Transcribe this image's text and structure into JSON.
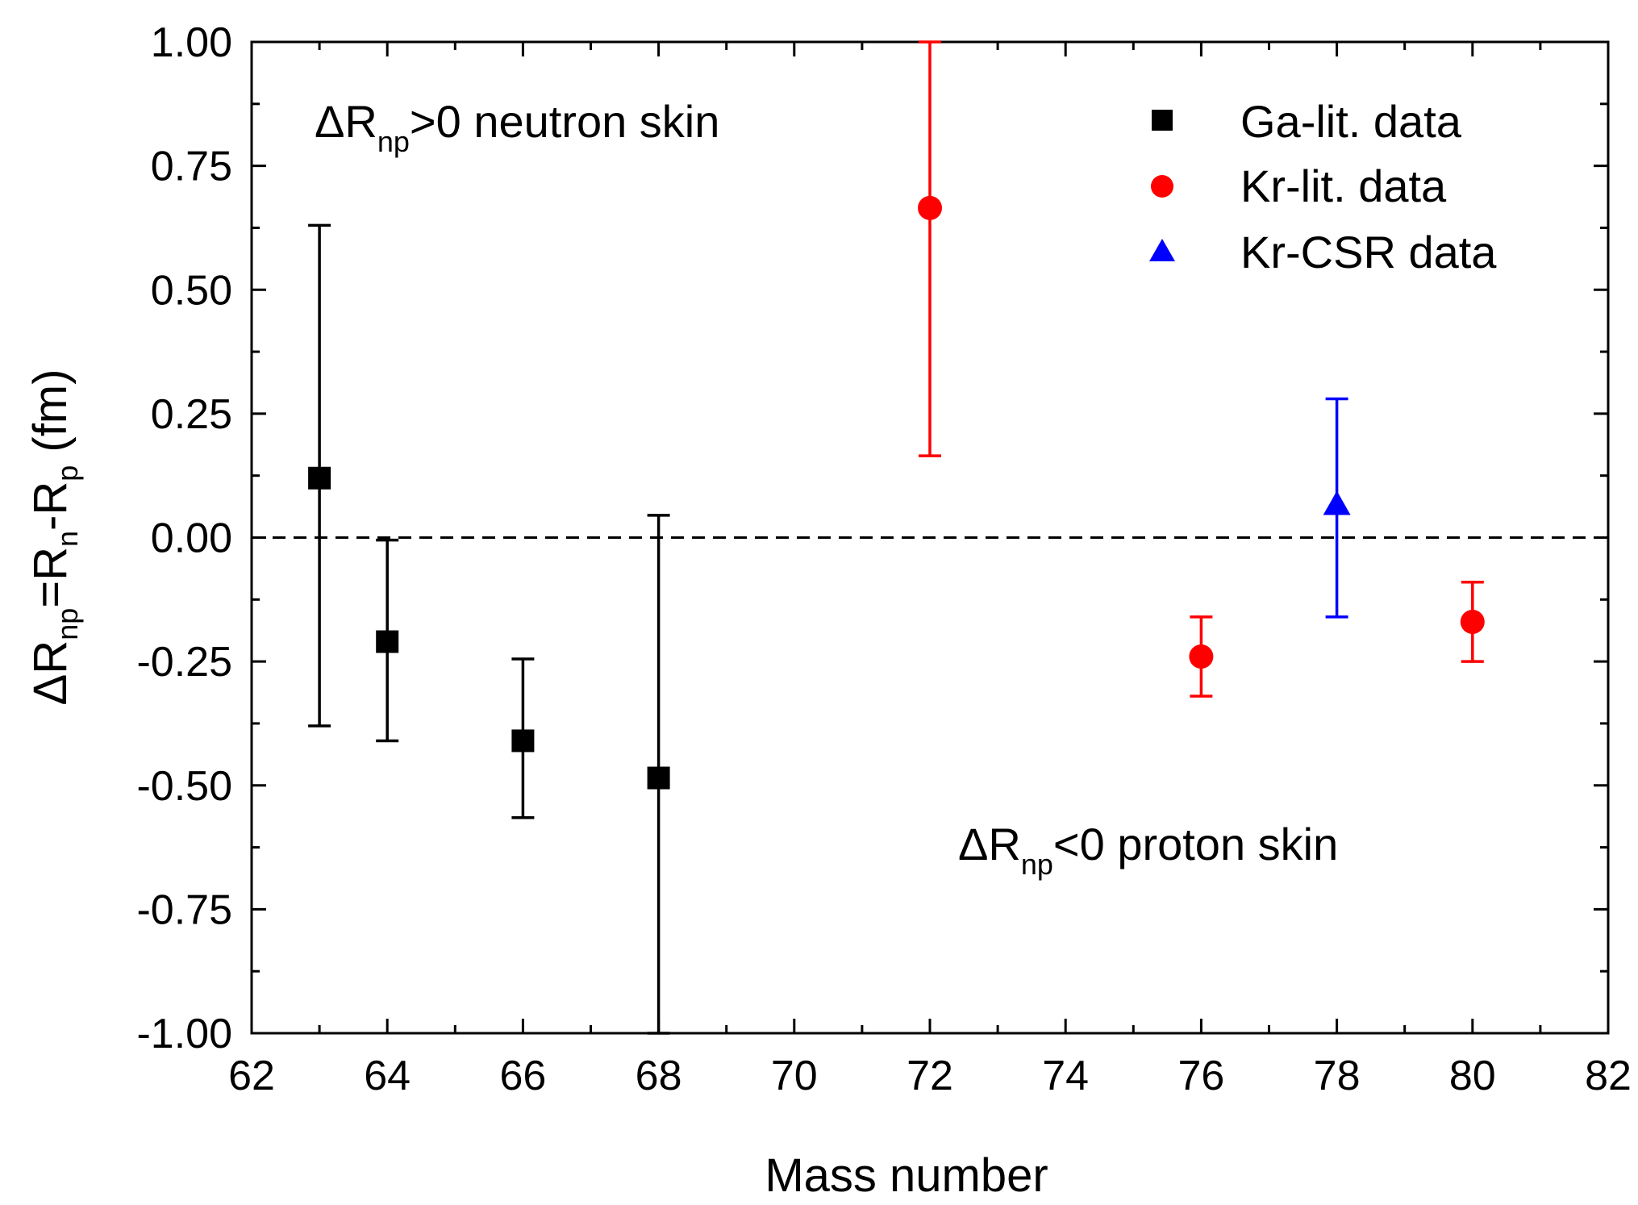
{
  "chart_data": {
    "type": "scatter",
    "xlabel": "Mass number",
    "ylabel": {
      "parts": [
        "ΔR",
        "np",
        "=R",
        "n",
        "-R",
        "p",
        " (fm)"
      ]
    },
    "xlim": [
      62,
      82
    ],
    "ylim": [
      -1.0,
      1.0
    ],
    "x_ticks": [
      "62",
      "64",
      "66",
      "68",
      "70",
      "72",
      "74",
      "76",
      "78",
      "80",
      "82"
    ],
    "y_ticks": [
      "-1.00",
      "-0.75",
      "-0.50",
      "-0.25",
      "0.00",
      "0.25",
      "0.50",
      "0.75",
      "1.00"
    ],
    "x_tick_values": [
      62,
      64,
      66,
      68,
      70,
      72,
      74,
      76,
      78,
      80,
      82
    ],
    "y_tick_values": [
      -1.0,
      -0.75,
      -0.5,
      -0.25,
      0.0,
      0.25,
      0.5,
      0.75,
      1.0
    ],
    "reference_line": {
      "y": 0.0,
      "style": "dashed"
    },
    "legend_position": "top-right",
    "series": [
      {
        "name": "Ga-lit. data",
        "marker": "square",
        "color": "#000000",
        "points": [
          {
            "x": 63,
            "y": 0.12,
            "err_low": -0.38,
            "err_high": 0.63
          },
          {
            "x": 64,
            "y": -0.21,
            "err_low": -0.41,
            "err_high": -0.005
          },
          {
            "x": 66,
            "y": -0.41,
            "err_low": -0.565,
            "err_high": -0.245
          },
          {
            "x": 68,
            "y": -0.485,
            "err_low": -1.0,
            "err_high": 0.045
          }
        ]
      },
      {
        "name": "Kr-lit. data",
        "marker": "circle",
        "color": "#ff0000",
        "points": [
          {
            "x": 72,
            "y": 0.665,
            "err_low": 0.165,
            "err_high": 1.0
          },
          {
            "x": 76,
            "y": -0.24,
            "err_low": -0.32,
            "err_high": -0.16
          },
          {
            "x": 80,
            "y": -0.17,
            "err_low": -0.25,
            "err_high": -0.09
          }
        ]
      },
      {
        "name": "Kr-CSR data",
        "marker": "triangle",
        "color": "#0000ff",
        "points": [
          {
            "x": 78,
            "y": 0.065,
            "err_low": -0.16,
            "err_high": 0.28
          }
        ]
      }
    ],
    "annotations": [
      {
        "id": "neutron",
        "parts": [
          "ΔR",
          "np",
          ">0 neutron skin"
        ]
      },
      {
        "id": "proton",
        "parts": [
          "ΔR",
          "np",
          "<0 proton skin"
        ]
      }
    ]
  }
}
